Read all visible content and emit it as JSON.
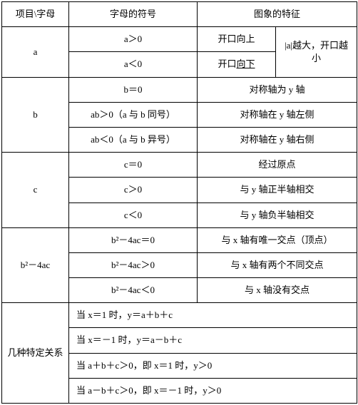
{
  "header": {
    "col1": "项目\\字母",
    "col2": "字母的符号",
    "col3": "图象的特征"
  },
  "a": {
    "label": "a",
    "r1_sym": "a＞0",
    "r1_feat": "开口向上",
    "r2_sym": "a＜0",
    "r2_feat_pre": "开口",
    "r2_feat_u": "向下",
    "side": "|a|越大，开口越小"
  },
  "b": {
    "label": "b",
    "r1_sym": "b＝0",
    "r1_feat": "对称轴为 y 轴",
    "r2_sym": "ab＞0（a 与 b 同号）",
    "r2_feat": "对称轴在 y 轴左侧",
    "r3_sym": "ab＜0（a 与 b 异号）",
    "r3_feat": "对称轴在 y 轴右侧"
  },
  "c": {
    "label": "c",
    "r1_sym": "c＝0",
    "r1_feat": "经过原点",
    "r2_sym": "c＞0",
    "r2_feat": "与 y 轴正半轴相交",
    "r3_sym": "c＜0",
    "r3_feat": "与 y 轴负半轴相交"
  },
  "d": {
    "label": "b²－4ac",
    "r1_sym": "b²－4ac＝0",
    "r1_feat": "与 x 轴有唯一交点（顶点）",
    "r2_sym": "b²－4ac＞0",
    "r2_feat": "与 x 轴有两个不同交点",
    "r3_sym": "b²－4ac＜0",
    "r3_feat": "与 x 轴没有交点"
  },
  "rel": {
    "label": "几种特定关系",
    "r1": "当 x＝1 时，y＝a＋b＋c",
    "r2": "当 x＝－1 时，y＝a－b＋c",
    "r3": "当 a＋b＋c＞0，即 x＝1 时，y＞0",
    "r4": "当 a－b＋c＞0，即 x＝－1 时，y＞0"
  }
}
